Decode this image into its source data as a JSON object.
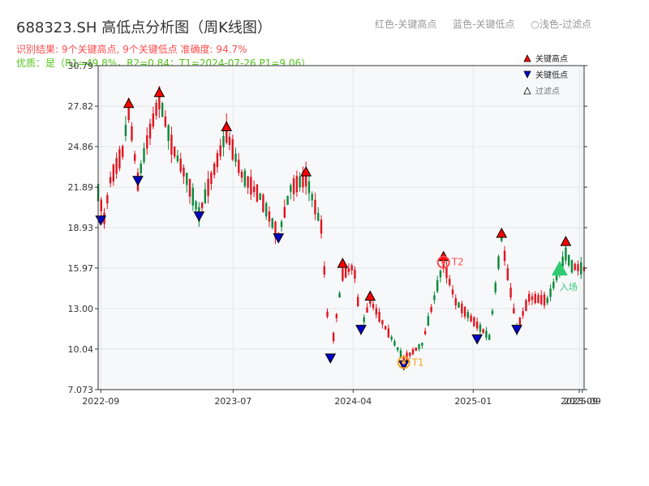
{
  "title": "688323.SH 高低点分析图（周K线图）",
  "legend_text": {
    "red": "红色-关键高点",
    "blue": "蓝色-关键低点",
    "light": "○浅色-过滤点"
  },
  "subtitle1": "识别结果: 9个关键高点, 9个关键低点  准确度: 94.7%",
  "subtitle2": "优质：是（R1=49.8%，R2=0.84；T1=2024-07-26 P1=9.06）",
  "colors": {
    "up": "#e0141e",
    "down": "#0a8a3a",
    "high_marker": "#ff0000",
    "low_marker": "#0000cc",
    "t1": "#f5a623",
    "t2": "#ff4d4f",
    "entry": "#2ecc71",
    "plot_bg": "#f7f8fa",
    "grid": "#e3e6ea"
  },
  "chart_data": {
    "type": "candlestick",
    "x_range": [
      "2022-08-26",
      "2025-09-12"
    ],
    "ylim": [
      7.073,
      30.79
    ],
    "y_ticks": [
      "7.073",
      "10.04",
      "13.00",
      "15.97",
      "18.93",
      "21.89",
      "24.86",
      "27.82",
      "30.79"
    ],
    "x_ticks": [
      {
        "label": "2022-09",
        "date": "2022-09-01"
      },
      {
        "label": "2023-07",
        "date": "2023-07-01"
      },
      {
        "label": "2024-04",
        "date": "2024-04-01"
      },
      {
        "label": "2025-01",
        "date": "2025-01-01"
      },
      {
        "label": "2025-09",
        "date": "2025-09-01"
      },
      {
        "label": "2025-09",
        "date": "2025-09-08"
      }
    ],
    "anchors": [
      [
        "2022-08-26",
        21.5
      ],
      [
        "2022-09-09",
        19.6
      ],
      [
        "2022-09-23",
        22.4
      ],
      [
        "2022-10-21",
        24.5
      ],
      [
        "2022-11-04",
        27.6
      ],
      [
        "2022-11-25",
        22.3
      ],
      [
        "2022-12-16",
        25.2
      ],
      [
        "2023-01-13",
        28.4
      ],
      [
        "2023-02-10",
        25.0
      ],
      [
        "2023-03-17",
        22.5
      ],
      [
        "2023-04-14",
        19.9
      ],
      [
        "2023-05-19",
        23.2
      ],
      [
        "2023-06-16",
        25.9
      ],
      [
        "2023-07-21",
        22.8
      ],
      [
        "2023-09-01",
        21.2
      ],
      [
        "2023-10-13",
        18.3
      ],
      [
        "2023-11-10",
        21.8
      ],
      [
        "2023-12-15",
        22.6
      ],
      [
        "2024-01-19",
        19.0
      ],
      [
        "2024-02-09",
        9.4
      ],
      [
        "2024-03-08",
        15.5
      ],
      [
        "2024-04-03",
        16.1
      ],
      [
        "2024-04-19",
        11.5
      ],
      [
        "2024-05-10",
        13.6
      ],
      [
        "2024-06-07",
        12.0
      ],
      [
        "2024-07-26",
        9.3
      ],
      [
        "2024-09-06",
        10.4
      ],
      [
        "2024-10-04",
        13.8
      ],
      [
        "2024-10-25",
        16.4
      ],
      [
        "2024-11-22",
        13.5
      ],
      [
        "2025-01-10",
        11.8
      ],
      [
        "2025-02-07",
        10.9
      ],
      [
        "2025-03-07",
        18.2
      ],
      [
        "2025-04-11",
        11.5
      ],
      [
        "2025-05-09",
        13.8
      ],
      [
        "2025-06-20",
        13.6
      ],
      [
        "2025-08-01",
        17.0
      ],
      [
        "2025-08-15",
        16.1
      ],
      [
        "2025-09-12",
        15.9
      ]
    ],
    "key_highs": [
      {
        "date": "2022-11-04",
        "price": 27.6
      },
      {
        "date": "2023-01-13",
        "price": 28.4
      },
      {
        "date": "2023-06-16",
        "price": 25.9
      },
      {
        "date": "2023-12-15",
        "price": 22.6
      },
      {
        "date": "2024-03-08",
        "price": 15.9
      },
      {
        "date": "2024-05-10",
        "price": 13.5
      },
      {
        "date": "2024-10-25",
        "price": 16.4
      },
      {
        "date": "2025-03-07",
        "price": 18.1
      },
      {
        "date": "2025-08-01",
        "price": 17.5
      }
    ],
    "key_lows": [
      {
        "date": "2022-09-01",
        "price": 19.9
      },
      {
        "date": "2022-11-25",
        "price": 22.8
      },
      {
        "date": "2023-04-14",
        "price": 20.2
      },
      {
        "date": "2023-10-13",
        "price": 18.6
      },
      {
        "date": "2024-02-09",
        "price": 9.8
      },
      {
        "date": "2024-04-19",
        "price": 11.9
      },
      {
        "date": "2024-07-26",
        "price": 9.3
      },
      {
        "date": "2025-01-10",
        "price": 11.2
      },
      {
        "date": "2025-04-11",
        "price": 11.9
      }
    ],
    "t1": {
      "label": "T1",
      "date": "2024-07-26",
      "price": 9.06
    },
    "t2": {
      "label": "T2",
      "date": "2024-10-25",
      "price": 16.4
    },
    "entry": {
      "label": "入场",
      "date": "2025-07-18",
      "price": 15.9
    },
    "legend": [
      {
        "label": "关键高点",
        "color": "#ff0000",
        "shape": "up"
      },
      {
        "label": "关键低点",
        "color": "#0000cc",
        "shape": "down"
      },
      {
        "label": "过滤点",
        "color": "#ffffff",
        "shape": "up-outline"
      }
    ]
  }
}
